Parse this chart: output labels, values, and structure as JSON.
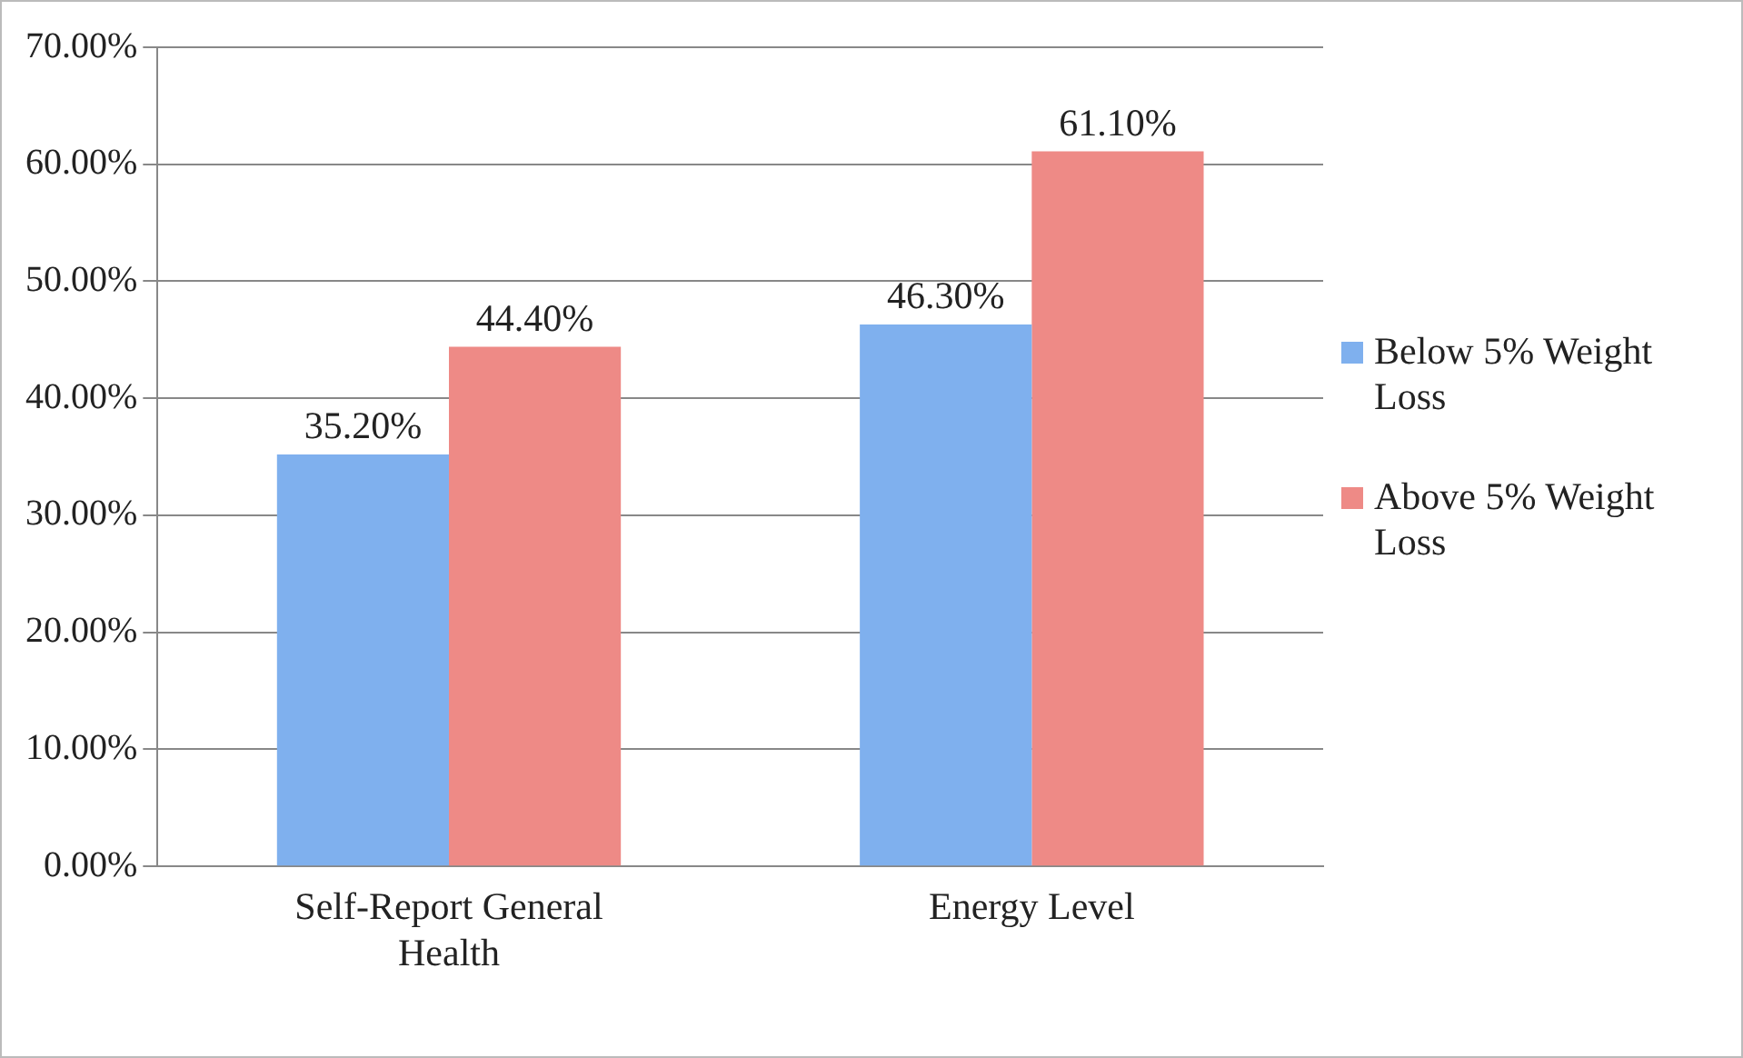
{
  "chart_data": {
    "type": "bar",
    "categories": [
      "Self-Report General Health",
      "Energy Level"
    ],
    "series": [
      {
        "name": "Below 5% Weight Loss",
        "color": "#7fb0ee",
        "values": [
          35.2,
          46.3
        ],
        "value_labels": [
          "35.20%",
          "46.30%"
        ]
      },
      {
        "name": "Above 5% Weight Loss",
        "color": "#ee8a86",
        "values": [
          44.4,
          61.1
        ],
        "value_labels": [
          "44.40%",
          "61.10%"
        ]
      }
    ],
    "ylim": [
      0,
      70
    ],
    "yticks": [
      {
        "value": 0,
        "label": "0.00%"
      },
      {
        "value": 10,
        "label": "10.00%"
      },
      {
        "value": 20,
        "label": "20.00%"
      },
      {
        "value": 30,
        "label": "30.00%"
      },
      {
        "value": 40,
        "label": "40.00%"
      },
      {
        "value": 50,
        "label": "50.00%"
      },
      {
        "value": 60,
        "label": "60.00%"
      },
      {
        "value": 70,
        "label": "70.00%"
      }
    ],
    "grid": "y",
    "legend": "right"
  }
}
